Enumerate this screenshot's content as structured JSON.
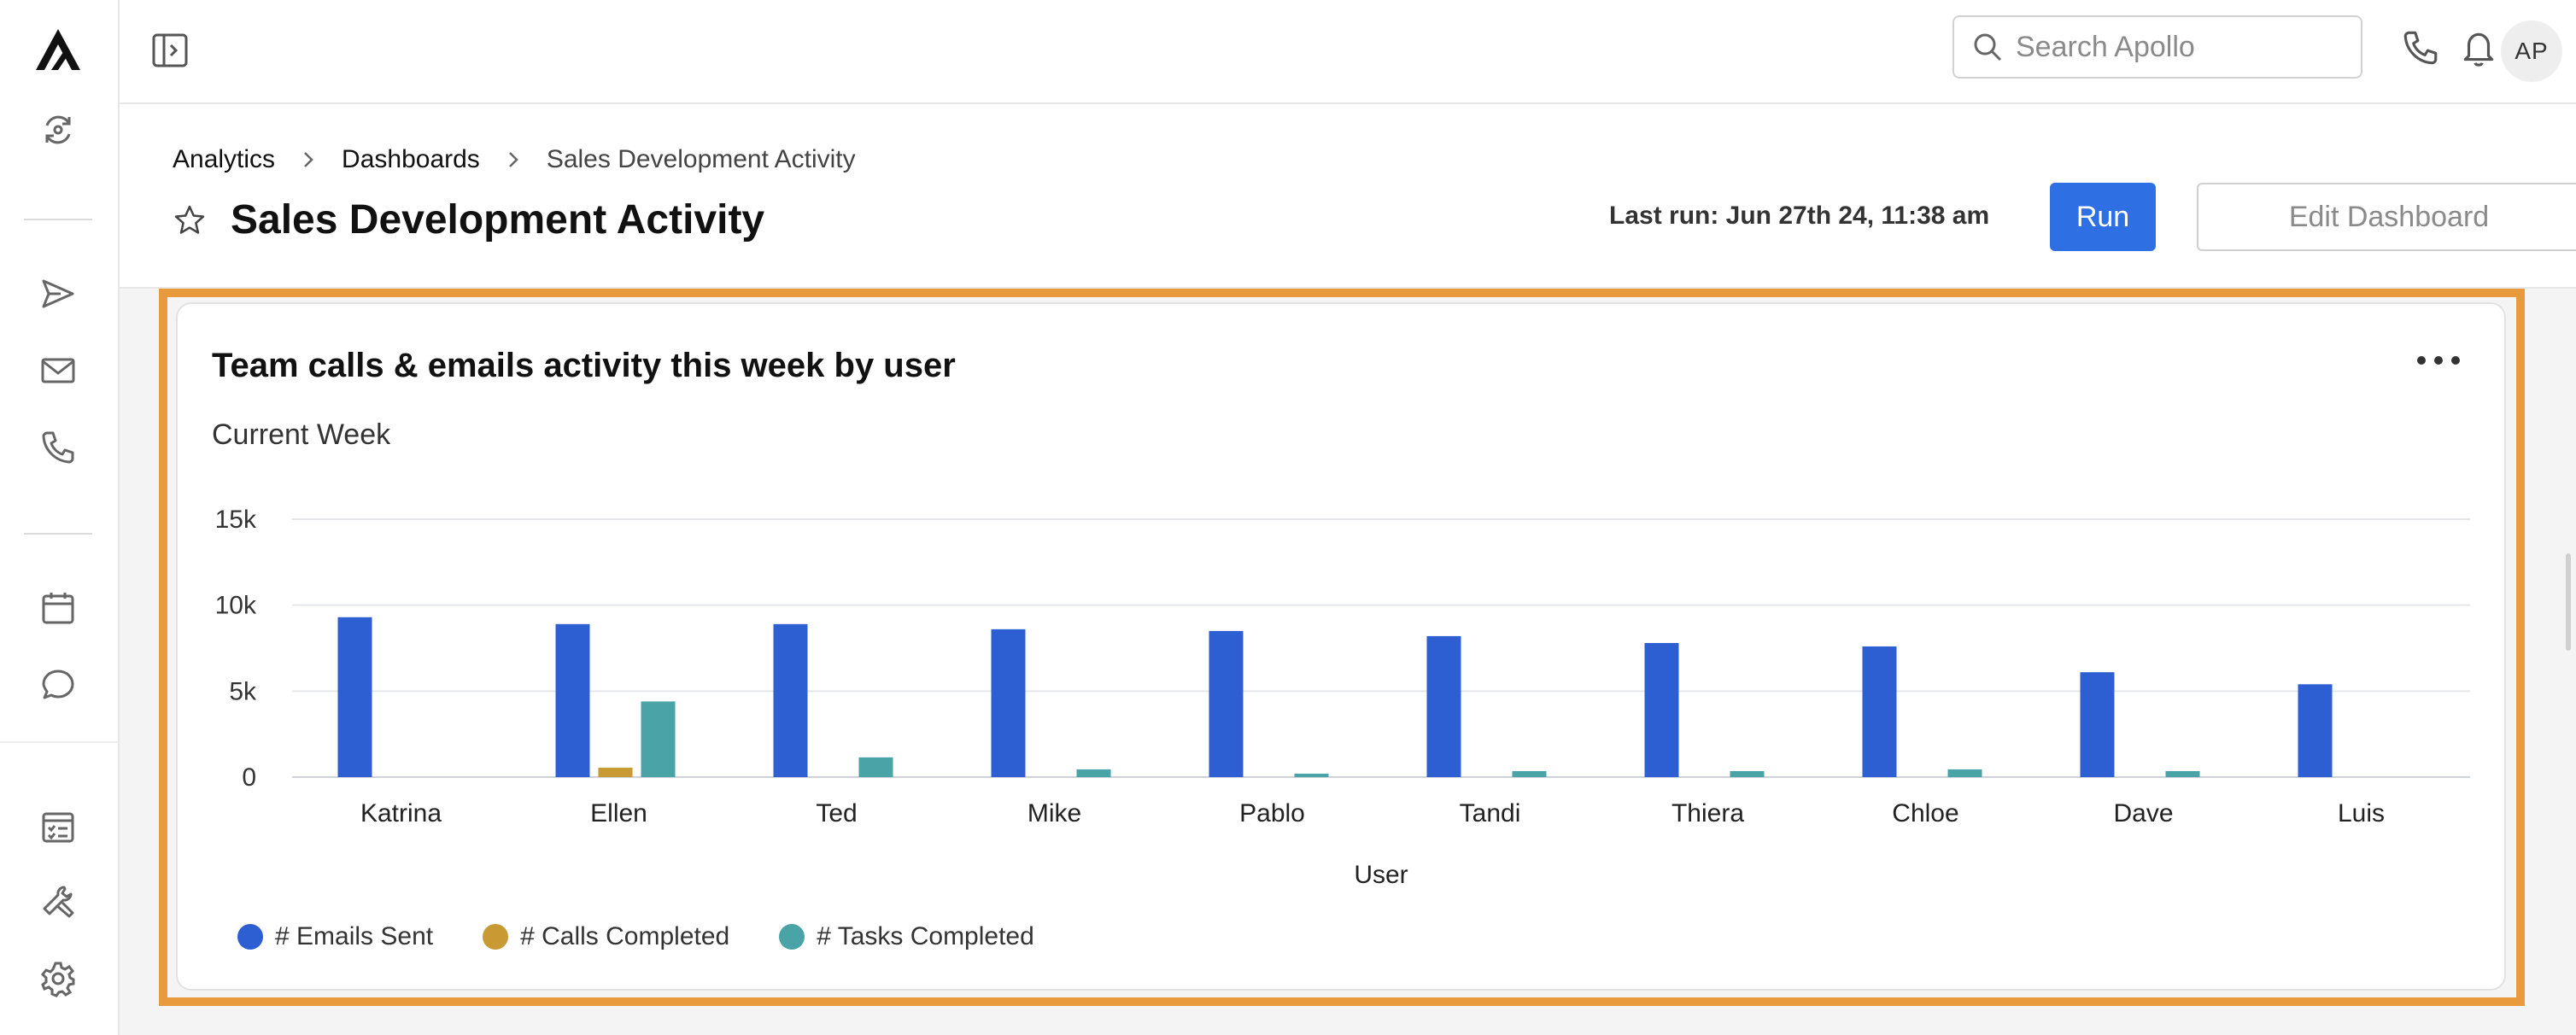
{
  "topbar": {
    "search_placeholder": "Search Apollo",
    "avatar_initials": "AP"
  },
  "header": {
    "breadcrumb": [
      "Analytics",
      "Dashboards",
      "Sales Development Activity"
    ],
    "title": "Sales Development Activity",
    "last_run": "Last run: Jun 27th 24, 11:38 am",
    "run_label": "Run",
    "edit_label": "Edit Dashboard"
  },
  "sidebar": {
    "icons": [
      "logo-icon",
      "sync-icon",
      "send-icon",
      "mail-icon",
      "phone-icon",
      "calendar-icon",
      "chat-icon",
      "tasks-icon",
      "tools-icon",
      "gear-icon"
    ]
  },
  "card": {
    "title": "Team calls & emails activity this week by user",
    "subtitle": "Current Week"
  },
  "colors": {
    "accent": "#2f6fe4",
    "highlight": "#e99a3c",
    "emails": "#2d5fd3",
    "calls": "#c99a34",
    "tasks": "#4aa3a6"
  },
  "chart_data": {
    "type": "bar",
    "title": "Team calls & emails activity this week by user",
    "subtitle": "Current Week",
    "xlabel": "User",
    "ylabel": "",
    "ylim": [
      0,
      15000
    ],
    "yticks": [
      0,
      5000,
      10000,
      15000
    ],
    "ytick_labels": [
      "0",
      "5k",
      "10k",
      "15k"
    ],
    "grid": true,
    "legend_position": "bottom-left",
    "categories": [
      "Katrina",
      "Ellen",
      "Ted",
      "Mike",
      "Pablo",
      "Tandi",
      "Thiera",
      "Chloe",
      "Dave",
      "Luis"
    ],
    "series": [
      {
        "name": "# Emails Sent",
        "color": "#2d5fd3",
        "values": [
          9300,
          8900,
          8900,
          8600,
          8500,
          8200,
          7800,
          7600,
          6100,
          5400
        ]
      },
      {
        "name": "# Calls Completed",
        "color": "#c99a34",
        "values": [
          0,
          550,
          0,
          0,
          0,
          0,
          0,
          0,
          0,
          0
        ]
      },
      {
        "name": "# Tasks Completed",
        "color": "#4aa3a6",
        "values": [
          0,
          4400,
          1150,
          450,
          200,
          350,
          350,
          450,
          350,
          0
        ]
      }
    ]
  }
}
